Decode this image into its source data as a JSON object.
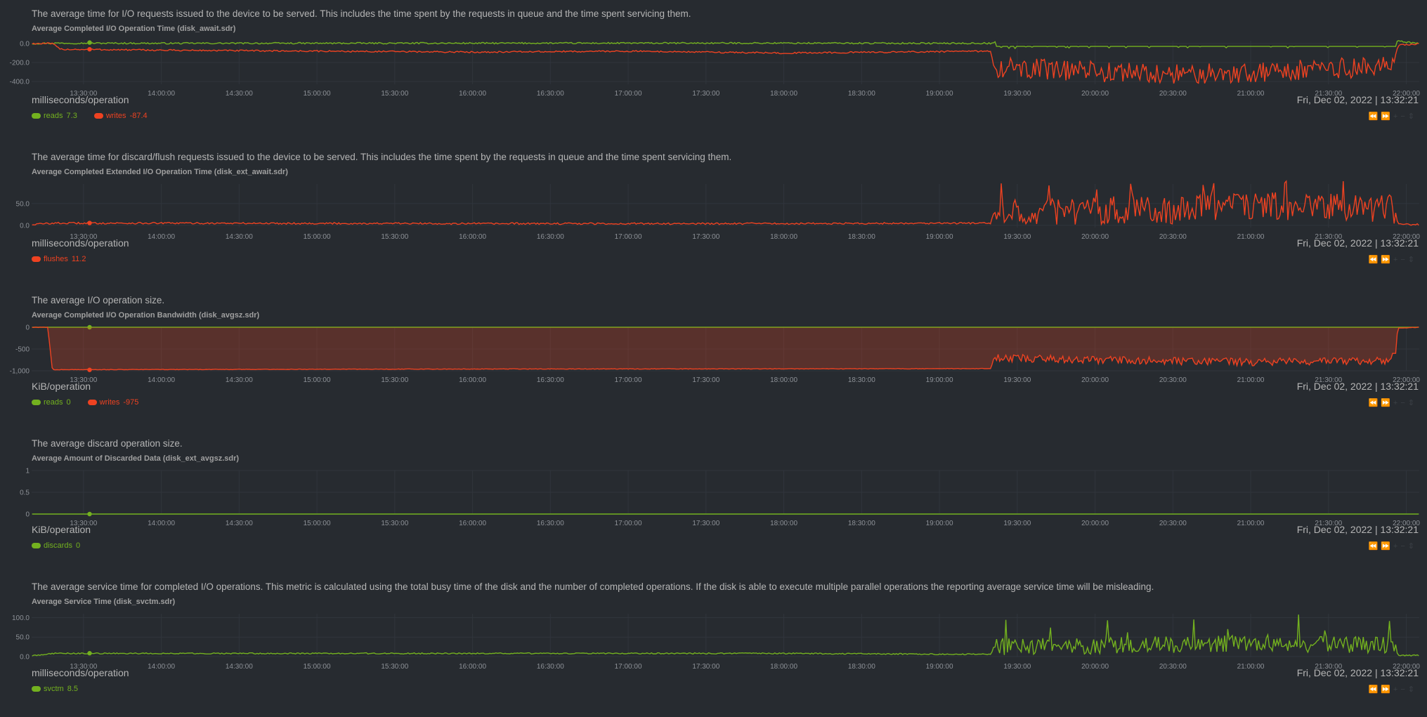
{
  "chart_data": [
    {
      "type": "line",
      "description": "The average time for I/O requests issued to the device to be served. This includes the time spent by the requests in queue and the time spent servicing them.",
      "title": "Average Completed I/O Operation Time (disk_await.sdr)",
      "units": "milliseconds/operation",
      "datetime": "Fri, Dec 02, 2022 | 13:32:21",
      "x_ticks": [
        "13:30:00",
        "14:00:00",
        "14:30:00",
        "15:00:00",
        "15:30:00",
        "16:00:00",
        "16:30:00",
        "17:00:00",
        "17:30:00",
        "18:00:00",
        "18:30:00",
        "19:00:00",
        "19:30:00",
        "20:00:00",
        "20:30:00",
        "21:00:00",
        "21:30:00",
        "22:00:00"
      ],
      "y_ticks": [
        "0.0",
        "-200.0",
        "-400.0"
      ],
      "ylim": [
        -430,
        30
      ],
      "x_range": [
        "13:10:00",
        "22:05:00"
      ],
      "fill": false,
      "series": [
        {
          "name": "reads",
          "color": "#73b11f",
          "latest": "7.3",
          "segments": [
            [
              13.17,
              0
            ],
            [
              13.3,
              5
            ],
            [
              14.0,
              3
            ],
            [
              16.0,
              4
            ],
            [
              18.0,
              5
            ],
            [
              19.0,
              3
            ],
            [
              19.33,
              3
            ],
            [
              19.37,
              15
            ],
            [
              21.95,
              25
            ],
            [
              22.08,
              0
            ]
          ]
        },
        {
          "name": "writes",
          "color": "#ee4221",
          "latest": "-87.4",
          "segments": [
            [
              13.17,
              0
            ],
            [
              13.3,
              0
            ],
            [
              13.35,
              -60
            ],
            [
              14.0,
              -70
            ],
            [
              16.0,
              -90
            ],
            [
              17.0,
              -80
            ],
            [
              18.0,
              -100
            ],
            [
              19.0,
              -85
            ],
            [
              19.33,
              -80
            ],
            [
              19.35,
              -250
            ],
            [
              20.5,
              -330
            ],
            [
              21.0,
              -300
            ],
            [
              21.9,
              -240
            ],
            [
              21.95,
              -20
            ],
            [
              22.08,
              0
            ]
          ]
        }
      ]
    },
    {
      "type": "line",
      "description": "The average time for discard/flush requests issued to the device to be served. This includes the time spent by the requests in queue and the time spent servicing them.",
      "title": "Average Completed Extended I/O Operation Time (disk_ext_await.sdr)",
      "units": "milliseconds/operation",
      "datetime": "Fri, Dec 02, 2022 | 13:32:21",
      "x_ticks": [
        "13:30:00",
        "14:00:00",
        "14:30:00",
        "15:00:00",
        "15:30:00",
        "16:00:00",
        "16:30:00",
        "17:00:00",
        "17:30:00",
        "18:00:00",
        "18:30:00",
        "19:00:00",
        "19:30:00",
        "20:00:00",
        "20:30:00",
        "21:00:00",
        "21:30:00",
        "22:00:00"
      ],
      "y_ticks": [
        "50.0",
        "0.0"
      ],
      "ylim": [
        -5,
        95
      ],
      "x_range": [
        "13:10:00",
        "22:05:00"
      ],
      "fill": false,
      "series": [
        {
          "name": "flushes",
          "color": "#ee4221",
          "latest": "11.2",
          "segments": [
            [
              13.17,
              2
            ],
            [
              13.3,
              5
            ],
            [
              14.0,
              5
            ],
            [
              16.0,
              4
            ],
            [
              18.0,
              4
            ],
            [
              19.0,
              5
            ],
            [
              19.33,
              5
            ],
            [
              19.35,
              30
            ],
            [
              20.5,
              35
            ],
            [
              21.0,
              45
            ],
            [
              21.9,
              38
            ],
            [
              21.95,
              2
            ],
            [
              22.08,
              2
            ]
          ]
        }
      ]
    },
    {
      "type": "area",
      "description": "The average I/O operation size.",
      "title": "Average Completed I/O Operation Bandwidth (disk_avgsz.sdr)",
      "units": "KiB/operation",
      "datetime": "Fri, Dec 02, 2022 | 13:32:21",
      "x_ticks": [
        "13:30:00",
        "14:00:00",
        "14:30:00",
        "15:00:00",
        "15:30:00",
        "16:00:00",
        "16:30:00",
        "17:00:00",
        "17:30:00",
        "18:00:00",
        "18:30:00",
        "19:00:00",
        "19:30:00",
        "20:00:00",
        "20:30:00",
        "21:00:00",
        "21:30:00",
        "22:00:00"
      ],
      "y_ticks": [
        "0",
        "-500",
        "-1,000"
      ],
      "ylim": [
        -1000,
        0
      ],
      "x_range": [
        "13:10:00",
        "22:05:00"
      ],
      "fill": true,
      "series": [
        {
          "name": "reads",
          "color": "#73b11f",
          "latest": "0",
          "segments": [
            [
              13.17,
              0
            ],
            [
              22.08,
              0
            ]
          ]
        },
        {
          "name": "writes",
          "color": "#ee4221",
          "latest": "-975",
          "segments": [
            [
              13.17,
              0
            ],
            [
              13.27,
              0
            ],
            [
              13.3,
              -975
            ],
            [
              16.0,
              -960
            ],
            [
              18.0,
              -955
            ],
            [
              19.33,
              -950
            ],
            [
              19.35,
              -700
            ],
            [
              20.5,
              -780
            ],
            [
              21.0,
              -800
            ],
            [
              21.9,
              -760
            ],
            [
              21.95,
              -20
            ],
            [
              22.08,
              0
            ]
          ]
        }
      ]
    },
    {
      "type": "line",
      "description": "The average discard operation size.",
      "title": "Average Amount of Discarded Data (disk_ext_avgsz.sdr)",
      "units": "KiB/operation",
      "datetime": "Fri, Dec 02, 2022 | 13:32:21",
      "x_ticks": [
        "13:30:00",
        "14:00:00",
        "14:30:00",
        "15:00:00",
        "15:30:00",
        "16:00:00",
        "16:30:00",
        "17:00:00",
        "17:30:00",
        "18:00:00",
        "18:30:00",
        "19:00:00",
        "19:30:00",
        "20:00:00",
        "20:30:00",
        "21:00:00",
        "21:30:00",
        "22:00:00"
      ],
      "y_ticks": [
        "1",
        "0.5",
        "0"
      ],
      "ylim": [
        0,
        1
      ],
      "x_range": [
        "13:10:00",
        "22:05:00"
      ],
      "fill": false,
      "series": [
        {
          "name": "discards",
          "color": "#73b11f",
          "latest": "0",
          "segments": [
            [
              13.17,
              0
            ],
            [
              22.08,
              0
            ]
          ]
        }
      ]
    },
    {
      "type": "line",
      "description": "The average service time for completed I/O operations. This metric is calculated using the total busy time of the disk and the number of completed operations. If the disk is able to execute multiple parallel operations the reporting average service time will be misleading.",
      "title": "Average Service Time (disk_svctm.sdr)",
      "units": "milliseconds/operation",
      "datetime": "Fri, Dec 02, 2022 | 13:32:21",
      "x_ticks": [
        "13:30:00",
        "14:00:00",
        "14:30:00",
        "15:00:00",
        "15:30:00",
        "16:00:00",
        "16:30:00",
        "17:00:00",
        "17:30:00",
        "18:00:00",
        "18:30:00",
        "19:00:00",
        "19:30:00",
        "20:00:00",
        "20:30:00",
        "21:00:00",
        "21:30:00",
        "22:00:00"
      ],
      "y_ticks": [
        "100.0",
        "50.0",
        "0.0"
      ],
      "ylim": [
        -2,
        110
      ],
      "x_range": [
        "13:10:00",
        "22:05:00"
      ],
      "fill": false,
      "series": [
        {
          "name": "svctm",
          "color": "#73b11f",
          "latest": "8.5",
          "segments": [
            [
              13.17,
              2
            ],
            [
              13.3,
              8
            ],
            [
              14.0,
              8
            ],
            [
              16.0,
              8
            ],
            [
              18.0,
              8
            ],
            [
              19.0,
              6
            ],
            [
              19.33,
              6
            ],
            [
              19.35,
              25
            ],
            [
              20.5,
              30
            ],
            [
              21.0,
              35
            ],
            [
              21.9,
              28
            ],
            [
              21.95,
              3
            ],
            [
              22.08,
              3
            ]
          ]
        }
      ]
    }
  ]
}
